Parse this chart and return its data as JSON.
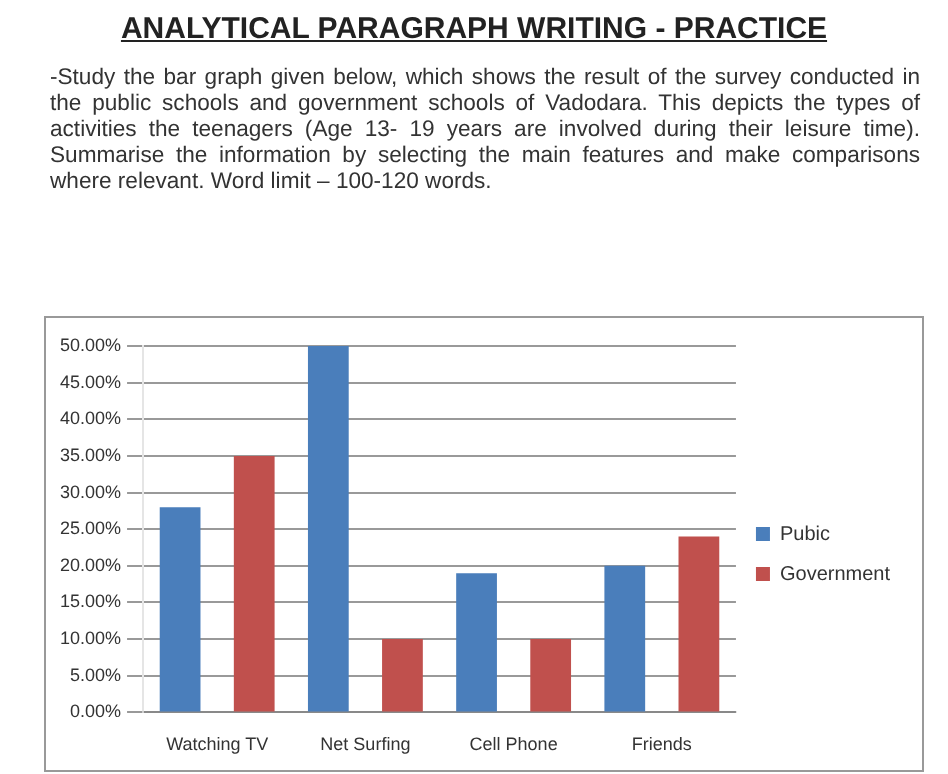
{
  "chart_data": {
    "type": "bar",
    "title": "ANALYTICAL PARAGRAPH WRITING - PRACTICE",
    "subtitle": "-Study the bar graph given below, which shows the result of the survey conducted in the public schools and government schools of Vadodara. This depicts the types of activities the teenagers (Age 13- 19 years are involved during their leisure time). Summarise the information by selecting the main features and make comparisons where relevant. Word limit – 100-120 words.",
    "categories": [
      "Watching TV",
      "Net Surfing",
      "Cell Phone",
      "Friends"
    ],
    "series": [
      {
        "name": "Pubic",
        "color": "#4a7ebb",
        "values": [
          28,
          50,
          19,
          20
        ]
      },
      {
        "name": "Government",
        "color": "#c0504d",
        "values": [
          35,
          10,
          10,
          24
        ]
      }
    ],
    "ylim": [
      0,
      50
    ],
    "yticks": [
      {
        "value": 0,
        "label": "0.00%"
      },
      {
        "value": 5,
        "label": "5.00%"
      },
      {
        "value": 10,
        "label": "10.00%"
      },
      {
        "value": 15,
        "label": "15.00%"
      },
      {
        "value": 20,
        "label": "20.00%"
      },
      {
        "value": 25,
        "label": "25.00%"
      },
      {
        "value": 30,
        "label": "30.00%"
      },
      {
        "value": 35,
        "label": "35.00%"
      },
      {
        "value": 40,
        "label": "40.00%"
      },
      {
        "value": 45,
        "label": "45.00%"
      },
      {
        "value": 50,
        "label": "50.00%"
      }
    ],
    "grid": "y",
    "legend": "right"
  }
}
